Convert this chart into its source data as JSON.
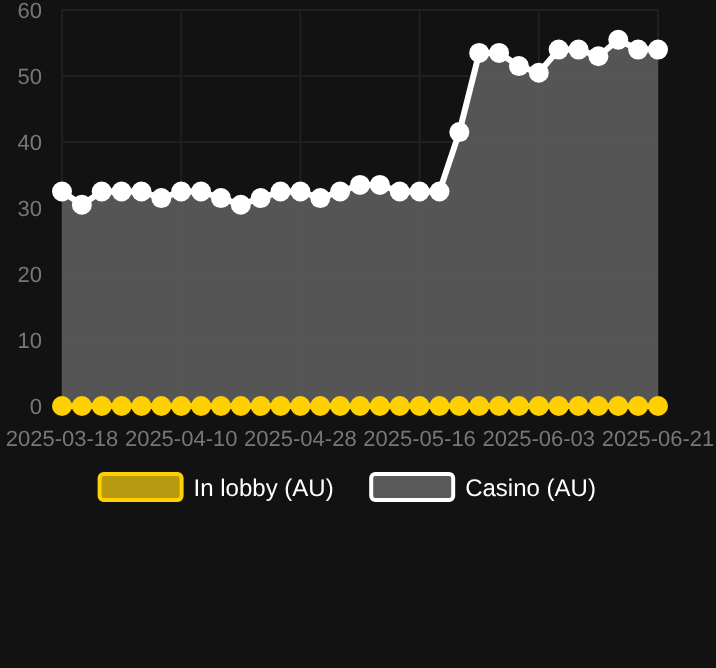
{
  "chart_data": {
    "type": "area",
    "categories": [
      "2025-03-18",
      null,
      null,
      null,
      null,
      null,
      "2025-04-10",
      null,
      null,
      null,
      null,
      null,
      "2025-04-28",
      null,
      null,
      null,
      null,
      null,
      "2025-05-16",
      null,
      null,
      null,
      null,
      null,
      "2025-06-03",
      null,
      null,
      null,
      null,
      null,
      "2025-06-21"
    ],
    "series": [
      {
        "name": "In lobby (AU)",
        "type": "line",
        "color": "#ffd000",
        "values": [
          0,
          0,
          0,
          0,
          0,
          0,
          0,
          0,
          0,
          0,
          0,
          0,
          0,
          0,
          0,
          0,
          0,
          0,
          0,
          0,
          0,
          0,
          0,
          0,
          0,
          0,
          0,
          0,
          0,
          0,
          0
        ]
      },
      {
        "name": "Casino (AU)",
        "color": "#ffffff",
        "values": [
          32.5,
          30.5,
          32.5,
          32.5,
          32.5,
          31.5,
          32.5,
          32.5,
          31.5,
          30.5,
          31.5,
          32.5,
          32.5,
          31.5,
          32.5,
          33.5,
          33.5,
          32.5,
          32.5,
          32.5,
          41.5,
          53.5,
          53.5,
          51.5,
          50.5,
          54,
          54,
          53,
          55.5,
          54,
          54
        ]
      }
    ],
    "ylim": [
      0,
      60
    ],
    "yticks": [
      0,
      10,
      20,
      30,
      40,
      50,
      60
    ],
    "grid": true,
    "legend": "bottom",
    "marker": "circle",
    "line_style": "solid"
  }
}
